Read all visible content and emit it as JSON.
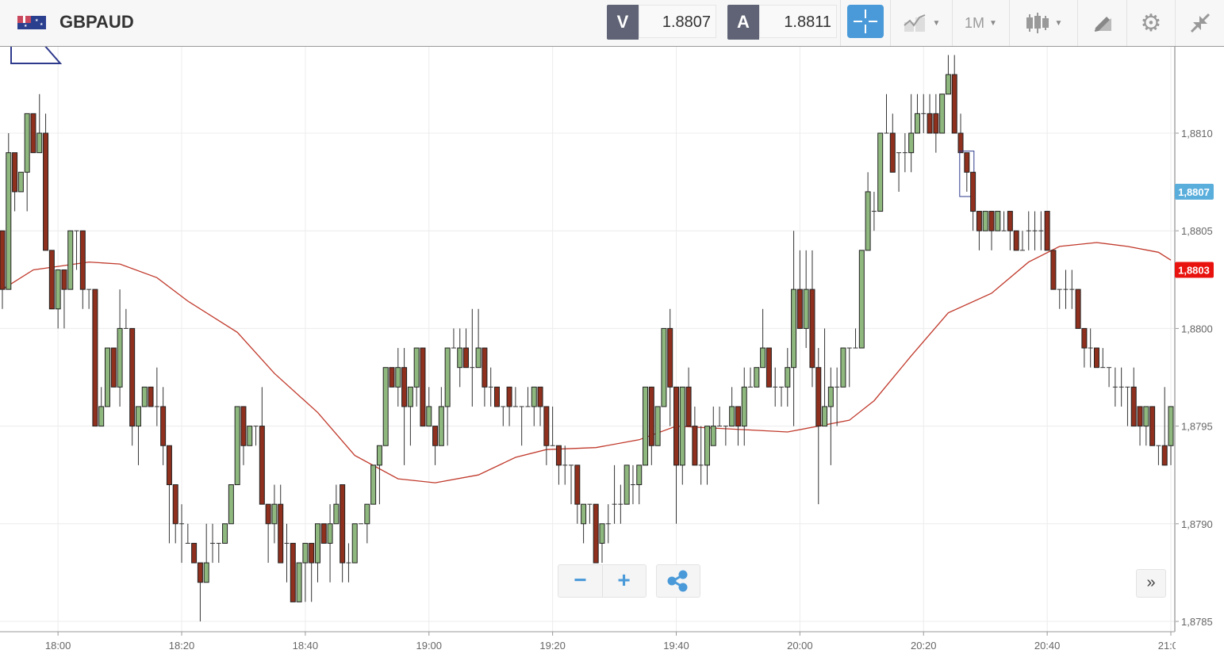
{
  "header": {
    "symbol": "GBPAUD",
    "sell_label": "V",
    "sell_price": "1.8807",
    "buy_label": "A",
    "buy_price": "1.8811",
    "timeframe": "1M",
    "icons": [
      "flag-gb-au-icon",
      "crosshair-icon",
      "chart-type-icon",
      "candlestick-icon",
      "drawing-tool-icon",
      "gear-icon",
      "collapse-icon"
    ]
  },
  "controls": {
    "zoom_out": "−",
    "zoom_in": "+",
    "scroll_right": "»"
  },
  "colors": {
    "up": "#8fb87f",
    "down": "#8f2f1d",
    "ma": "#c0392b",
    "bid_badge": "#5aaedc",
    "ma_badge": "#e8130f",
    "accent": "#4a9ad9"
  },
  "chart_data": {
    "type": "candlestick",
    "title": "GBPAUD",
    "interval": "1 minute",
    "start_time": "17:51",
    "xlabel": "",
    "ylabel": "",
    "ylim": [
      1.8784,
      1.88155
    ],
    "yticks": [
      "1,8785",
      "1,8790",
      "1,8795",
      "1,8800",
      "1,8805",
      "1,8810"
    ],
    "ytick_values": [
      1.8785,
      1.879,
      1.8795,
      1.88,
      1.8805,
      1.881
    ],
    "xticks": [
      "18:00",
      "18:20",
      "18:40",
      "19:00",
      "19:20",
      "19:40",
      "20:00",
      "20:20",
      "20:40",
      "21:00"
    ],
    "xtick_minutes": [
      9,
      29,
      49,
      69,
      89,
      109,
      129,
      149,
      169,
      189
    ],
    "grid": true,
    "badges": [
      {
        "label": "1,8807",
        "value": 1.8807,
        "kind": "bid"
      },
      {
        "label": "1,8803",
        "value": 1.8803,
        "kind": "ma"
      }
    ],
    "ohlc": [
      [
        1.8805,
        1.8805,
        1.8801,
        1.8802
      ],
      [
        1.8802,
        1.881,
        1.8802,
        1.8809
      ],
      [
        1.8809,
        1.8809,
        1.8806,
        1.8807
      ],
      [
        1.8807,
        1.8808,
        1.8807,
        1.8808
      ],
      [
        1.8808,
        1.8811,
        1.8806,
        1.8811
      ],
      [
        1.8811,
        1.8811,
        1.8809,
        1.8809
      ],
      [
        1.8809,
        1.8812,
        1.8809,
        1.881
      ],
      [
        1.881,
        1.8811,
        1.8804,
        1.8804
      ],
      [
        1.8804,
        1.8804,
        1.8801,
        1.8801
      ],
      [
        1.8801,
        1.8803,
        1.88,
        1.8803
      ],
      [
        1.8803,
        1.8803,
        1.88,
        1.8802
      ],
      [
        1.8802,
        1.8805,
        1.8802,
        1.8805
      ],
      [
        1.8805,
        1.8805,
        1.8803,
        1.8805
      ],
      [
        1.8805,
        1.8805,
        1.8801,
        1.8802
      ],
      [
        1.8802,
        1.8802,
        1.8801,
        1.8802
      ],
      [
        1.8802,
        1.8802,
        1.8795,
        1.8795
      ],
      [
        1.8795,
        1.8797,
        1.8795,
        1.8796
      ],
      [
        1.8796,
        1.8799,
        1.8796,
        1.8799
      ],
      [
        1.8799,
        1.8799,
        1.8797,
        1.8797
      ],
      [
        1.8797,
        1.8802,
        1.8796,
        1.88
      ],
      [
        1.88,
        1.8801,
        1.88,
        1.88
      ],
      [
        1.88,
        1.88,
        1.8794,
        1.8795
      ],
      [
        1.8795,
        1.8796,
        1.8793,
        1.8796
      ],
      [
        1.8796,
        1.8797,
        1.8796,
        1.8797
      ],
      [
        1.8797,
        1.8797,
        1.8796,
        1.8796
      ],
      [
        1.8796,
        1.8798,
        1.8795,
        1.8796
      ],
      [
        1.8796,
        1.8797,
        1.8793,
        1.8794
      ],
      [
        1.8794,
        1.8794,
        1.8789,
        1.8792
      ],
      [
        1.8792,
        1.8792,
        1.8789,
        1.879
      ],
      [
        1.879,
        1.8791,
        1.8788,
        1.879
      ],
      [
        1.8789,
        1.879,
        1.8789,
        1.8789
      ],
      [
        1.8789,
        1.8789,
        1.8788,
        1.8788
      ],
      [
        1.8788,
        1.8788,
        1.8785,
        1.8787
      ],
      [
        1.8787,
        1.879,
        1.8787,
        1.8788
      ],
      [
        1.8789,
        1.879,
        1.8788,
        1.8789
      ],
      [
        1.8789,
        1.8789,
        1.8788,
        1.8789
      ],
      [
        1.8789,
        1.879,
        1.8789,
        1.879
      ],
      [
        1.879,
        1.8792,
        1.879,
        1.8792
      ],
      [
        1.8792,
        1.8796,
        1.8792,
        1.8796
      ],
      [
        1.8796,
        1.8796,
        1.8793,
        1.8794
      ],
      [
        1.8794,
        1.8795,
        1.8794,
        1.8795
      ],
      [
        1.8795,
        1.8795,
        1.8794,
        1.8795
      ],
      [
        1.8795,
        1.8797,
        1.8791,
        1.8791
      ],
      [
        1.8791,
        1.8791,
        1.8788,
        1.879
      ],
      [
        1.879,
        1.8792,
        1.8789,
        1.8791
      ],
      [
        1.8791,
        1.8792,
        1.8788,
        1.8788
      ],
      [
        1.8789,
        1.879,
        1.8787,
        1.8789
      ],
      [
        1.8789,
        1.8789,
        1.8786,
        1.8786
      ],
      [
        1.8786,
        1.8788,
        1.8786,
        1.8788
      ],
      [
        1.8788,
        1.8789,
        1.8786,
        1.8789
      ],
      [
        1.8789,
        1.8789,
        1.8786,
        1.8788
      ],
      [
        1.8788,
        1.879,
        1.8787,
        1.879
      ],
      [
        1.879,
        1.879,
        1.8789,
        1.8789
      ],
      [
        1.8789,
        1.8791,
        1.8787,
        1.879
      ],
      [
        1.879,
        1.8792,
        1.879,
        1.8791
      ],
      [
        1.8792,
        1.8792,
        1.8787,
        1.8788
      ],
      [
        1.8788,
        1.8789,
        1.8787,
        1.8788
      ],
      [
        1.8788,
        1.879,
        1.8788,
        1.879
      ],
      [
        1.879,
        1.879,
        1.879,
        1.879
      ],
      [
        1.879,
        1.8791,
        1.8789,
        1.8791
      ],
      [
        1.8791,
        1.8793,
        1.8791,
        1.8793
      ],
      [
        1.8793,
        1.8794,
        1.8791,
        1.8794
      ],
      [
        1.8794,
        1.8798,
        1.8794,
        1.8798
      ],
      [
        1.8798,
        1.8798,
        1.8797,
        1.8797
      ],
      [
        1.8797,
        1.8799,
        1.8796,
        1.8798
      ],
      [
        1.8798,
        1.8799,
        1.8793,
        1.8796
      ],
      [
        1.8796,
        1.8797,
        1.8794,
        1.8797
      ],
      [
        1.8797,
        1.8799,
        1.8796,
        1.8799
      ],
      [
        1.8799,
        1.8799,
        1.8795,
        1.8795
      ],
      [
        1.8795,
        1.8797,
        1.8795,
        1.8796
      ],
      [
        1.8795,
        1.8795,
        1.8793,
        1.8794
      ],
      [
        1.8794,
        1.8797,
        1.8794,
        1.8796
      ],
      [
        1.8796,
        1.8799,
        1.8794,
        1.8799
      ],
      [
        1.8799,
        1.88,
        1.8799,
        1.8799
      ],
      [
        1.8798,
        1.88,
        1.8797,
        1.8799
      ],
      [
        1.8799,
        1.88,
        1.8798,
        1.8798
      ],
      [
        1.8798,
        1.8801,
        1.8796,
        1.8798
      ],
      [
        1.8798,
        1.8801,
        1.8798,
        1.8799
      ],
      [
        1.8799,
        1.8799,
        1.8796,
        1.8797
      ],
      [
        1.8797,
        1.8798,
        1.8796,
        1.8797
      ],
      [
        1.8797,
        1.8797,
        1.8796,
        1.8796
      ],
      [
        1.8796,
        1.8796,
        1.8795,
        1.8796
      ],
      [
        1.8797,
        1.8797,
        1.8795,
        1.8796
      ],
      [
        1.8796,
        1.8797,
        1.8796,
        1.8796
      ],
      [
        1.8796,
        1.8796,
        1.8794,
        1.8796
      ],
      [
        1.8796,
        1.8797,
        1.8796,
        1.8796
      ],
      [
        1.8796,
        1.8797,
        1.8795,
        1.8797
      ],
      [
        1.8797,
        1.8797,
        1.8795,
        1.8796
      ],
      [
        1.8796,
        1.8796,
        1.8793,
        1.8794
      ],
      [
        1.8794,
        1.8796,
        1.8794,
        1.8794
      ],
      [
        1.8794,
        1.8794,
        1.8792,
        1.8793
      ],
      [
        1.8793,
        1.8794,
        1.8792,
        1.8793
      ],
      [
        1.8793,
        1.8793,
        1.8791,
        1.8793
      ],
      [
        1.8793,
        1.8793,
        1.879,
        1.8791
      ],
      [
        1.879,
        1.8791,
        1.8789,
        1.8791
      ],
      [
        1.8791,
        1.8791,
        1.879,
        1.8791
      ],
      [
        1.8791,
        1.8791,
        1.8788,
        1.8788
      ],
      [
        1.8789,
        1.879,
        1.8788,
        1.879
      ],
      [
        1.879,
        1.8791,
        1.8789,
        1.879
      ],
      [
        1.8791,
        1.8793,
        1.879,
        1.8791
      ],
      [
        1.8791,
        1.8792,
        1.879,
        1.8791
      ],
      [
        1.8791,
        1.8793,
        1.8791,
        1.8793
      ],
      [
        1.8792,
        1.8793,
        1.8791,
        1.8792
      ],
      [
        1.8792,
        1.8793,
        1.8791,
        1.8793
      ],
      [
        1.8793,
        1.8797,
        1.8793,
        1.8797
      ],
      [
        1.8797,
        1.8797,
        1.8793,
        1.8794
      ],
      [
        1.8794,
        1.8796,
        1.8794,
        1.8796
      ],
      [
        1.8796,
        1.88,
        1.8796,
        1.88
      ],
      [
        1.88,
        1.8801,
        1.8795,
        1.8797
      ],
      [
        1.8797,
        1.8797,
        1.879,
        1.8793
      ],
      [
        1.8793,
        1.8797,
        1.8792,
        1.8797
      ],
      [
        1.8797,
        1.8798,
        1.8795,
        1.8795
      ],
      [
        1.8795,
        1.8796,
        1.8793,
        1.8793
      ],
      [
        1.8793,
        1.8795,
        1.8792,
        1.8793
      ],
      [
        1.8793,
        1.8795,
        1.8792,
        1.8795
      ],
      [
        1.8794,
        1.8796,
        1.8794,
        1.8795
      ],
      [
        1.8795,
        1.8796,
        1.8795,
        1.8795
      ],
      [
        1.8795,
        1.8795,
        1.8794,
        1.8795
      ],
      [
        1.8795,
        1.8797,
        1.8795,
        1.8796
      ],
      [
        1.8796,
        1.8796,
        1.8794,
        1.8795
      ],
      [
        1.8795,
        1.8798,
        1.8794,
        1.8797
      ],
      [
        1.8797,
        1.8798,
        1.8797,
        1.8797
      ],
      [
        1.8797,
        1.8798,
        1.8797,
        1.8798
      ],
      [
        1.8798,
        1.8801,
        1.8798,
        1.8799
      ],
      [
        1.8799,
        1.8799,
        1.8797,
        1.8797
      ],
      [
        1.8797,
        1.8798,
        1.8796,
        1.8797
      ],
      [
        1.8797,
        1.8797,
        1.8796,
        1.8797
      ],
      [
        1.8797,
        1.8799,
        1.8796,
        1.8798
      ],
      [
        1.8798,
        1.8805,
        1.8795,
        1.8802
      ],
      [
        1.8802,
        1.8804,
        1.88,
        1.88
      ],
      [
        1.88,
        1.8804,
        1.8799,
        1.8802
      ],
      [
        1.8802,
        1.8804,
        1.8797,
        1.8798
      ],
      [
        1.8798,
        1.8799,
        1.8791,
        1.8795
      ],
      [
        1.8795,
        1.88,
        1.8795,
        1.8796
      ],
      [
        1.8796,
        1.8798,
        1.8793,
        1.8797
      ],
      [
        1.8797,
        1.8798,
        1.8795,
        1.8797
      ],
      [
        1.8797,
        1.8799,
        1.8797,
        1.8799
      ],
      [
        1.8799,
        1.8799,
        1.8797,
        1.8799
      ],
      [
        1.8799,
        1.88,
        1.8799,
        1.8799
      ],
      [
        1.8799,
        1.8804,
        1.8799,
        1.8804
      ],
      [
        1.8804,
        1.8808,
        1.8804,
        1.8807
      ],
      [
        1.8806,
        1.8807,
        1.8805,
        1.8806
      ],
      [
        1.8806,
        1.881,
        1.8806,
        1.881
      ],
      [
        1.881,
        1.8812,
        1.881,
        1.881
      ],
      [
        1.881,
        1.8811,
        1.8808,
        1.8808
      ],
      [
        1.8809,
        1.8809,
        1.8807,
        1.8809
      ],
      [
        1.8809,
        1.881,
        1.8808,
        1.8809
      ],
      [
        1.8809,
        1.8812,
        1.8808,
        1.881
      ],
      [
        1.881,
        1.8812,
        1.881,
        1.8811
      ],
      [
        1.8811,
        1.8812,
        1.881,
        1.8811
      ],
      [
        1.8811,
        1.8812,
        1.881,
        1.881
      ],
      [
        1.8811,
        1.8812,
        1.8809,
        1.881
      ],
      [
        1.881,
        1.8812,
        1.881,
        1.8812
      ],
      [
        1.8812,
        1.8814,
        1.8812,
        1.8813
      ],
      [
        1.8813,
        1.8814,
        1.881,
        1.881
      ],
      [
        1.881,
        1.8811,
        1.8809,
        1.8809
      ],
      [
        1.8809,
        1.8809,
        1.8807,
        1.8808
      ],
      [
        1.8808,
        1.8808,
        1.8805,
        1.8806
      ],
      [
        1.8806,
        1.8806,
        1.8804,
        1.8805
      ],
      [
        1.8805,
        1.8806,
        1.8805,
        1.8806
      ],
      [
        1.8806,
        1.8806,
        1.8804,
        1.8805
      ],
      [
        1.8805,
        1.8806,
        1.8805,
        1.8806
      ],
      [
        1.8805,
        1.8806,
        1.8805,
        1.8805
      ],
      [
        1.8806,
        1.8806,
        1.8804,
        1.8805
      ],
      [
        1.8805,
        1.8805,
        1.8804,
        1.8804
      ],
      [
        1.8804,
        1.8805,
        1.8804,
        1.8804
      ],
      [
        1.8805,
        1.8806,
        1.8804,
        1.8805
      ],
      [
        1.8805,
        1.8806,
        1.8804,
        1.8805
      ],
      [
        1.8805,
        1.8806,
        1.8804,
        1.8805
      ],
      [
        1.8806,
        1.8806,
        1.8804,
        1.8804
      ],
      [
        1.8804,
        1.8804,
        1.8802,
        1.8802
      ],
      [
        1.8802,
        1.8802,
        1.8801,
        1.8802
      ],
      [
        1.8802,
        1.8803,
        1.8801,
        1.8802
      ],
      [
        1.8802,
        1.8803,
        1.8801,
        1.8802
      ],
      [
        1.8802,
        1.8802,
        1.88,
        1.88
      ],
      [
        1.88,
        1.88,
        1.8798,
        1.8799
      ],
      [
        1.8799,
        1.88,
        1.8798,
        1.8799
      ],
      [
        1.8799,
        1.8799,
        1.8798,
        1.8798
      ],
      [
        1.8798,
        1.8799,
        1.8798,
        1.8798
      ],
      [
        1.8798,
        1.8798,
        1.8797,
        1.8798
      ],
      [
        1.8797,
        1.8798,
        1.8796,
        1.8797
      ],
      [
        1.8797,
        1.8798,
        1.8796,
        1.8797
      ],
      [
        1.8797,
        1.8797,
        1.8795,
        1.8797
      ],
      [
        1.8797,
        1.8798,
        1.8795,
        1.8795
      ],
      [
        1.8796,
        1.8796,
        1.8794,
        1.8795
      ],
      [
        1.8795,
        1.8796,
        1.8794,
        1.8796
      ],
      [
        1.8796,
        1.8796,
        1.8794,
        1.8794
      ],
      [
        1.8794,
        1.8794,
        1.8793,
        1.8794
      ],
      [
        1.8794,
        1.8797,
        1.8793,
        1.8793
      ],
      [
        1.8794,
        1.8796,
        1.8793,
        1.8796
      ]
    ],
    "moving_average": {
      "points": [
        [
          0,
          1.8802
        ],
        [
          5,
          1.8803
        ],
        [
          14,
          1.88034
        ],
        [
          19,
          1.88033
        ],
        [
          25,
          1.88026
        ],
        [
          30,
          1.88014
        ],
        [
          38,
          1.87998
        ],
        [
          44,
          1.87977
        ],
        [
          51,
          1.87957
        ],
        [
          57,
          1.87935
        ],
        [
          64,
          1.87923
        ],
        [
          70,
          1.87921
        ],
        [
          77,
          1.87925
        ],
        [
          83,
          1.87934
        ],
        [
          88,
          1.87938
        ],
        [
          96,
          1.87939
        ],
        [
          103,
          1.87943
        ],
        [
          109,
          1.8795
        ],
        [
          115,
          1.87949
        ],
        [
          121,
          1.87948
        ],
        [
          127,
          1.87947
        ],
        [
          132,
          1.8795
        ],
        [
          137,
          1.87953
        ],
        [
          141,
          1.87963
        ],
        [
          147,
          1.87986
        ],
        [
          153,
          1.88008
        ],
        [
          160,
          1.88018
        ],
        [
          166,
          1.88034
        ],
        [
          171,
          1.88042
        ],
        [
          177,
          1.88044
        ],
        [
          182,
          1.88042
        ],
        [
          187,
          1.88039
        ],
        [
          189,
          1.88035
        ]
      ]
    },
    "selected_candle_index": 156
  }
}
